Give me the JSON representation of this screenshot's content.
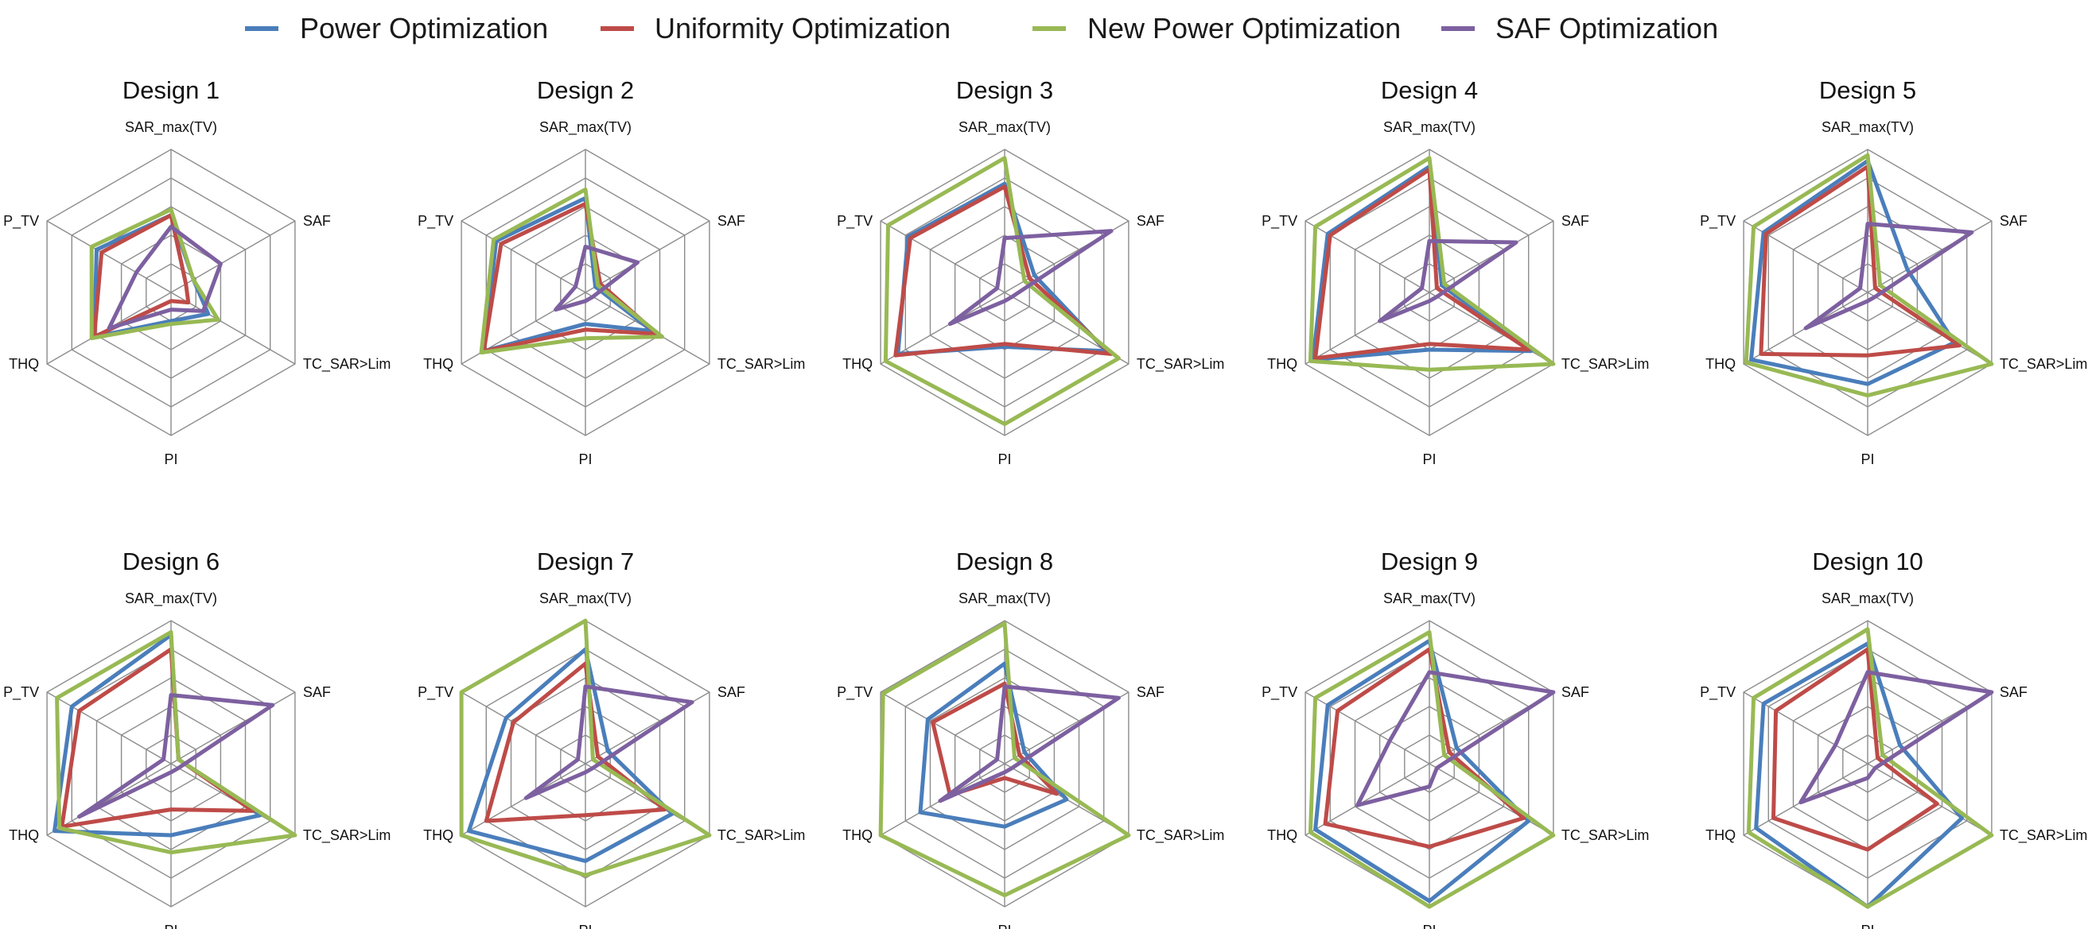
{
  "legend": [
    {
      "name": "Power Optimization",
      "color": "#4a7ebb"
    },
    {
      "name": "Uniformity Optimization",
      "color": "#be4b48"
    },
    {
      "name": "New Power Optimization",
      "color": "#98b954"
    },
    {
      "name": "SAF Optimization",
      "color": "#7d60a0"
    }
  ],
  "chart_data": [
    {
      "type": "radar",
      "title": "Design 1",
      "axes": [
        "SAR_max(TV)",
        "SAF",
        "TC_SAR>Lim",
        "PI",
        "THQ",
        "P_TV"
      ],
      "range": [
        0,
        5
      ],
      "series": [
        {
          "name": "Power Optimization",
          "values": [
            2.7,
            0.9,
            1.5,
            1.0,
            3.1,
            3.0
          ]
        },
        {
          "name": "Uniformity Optimization",
          "values": [
            2.7,
            0.6,
            0.7,
            0.3,
            3.1,
            2.8
          ]
        },
        {
          "name": "New Power Optimization",
          "values": [
            2.9,
            0.9,
            1.9,
            1.1,
            3.2,
            3.2
          ]
        },
        {
          "name": "SAF Optimization",
          "values": [
            2.3,
            2.0,
            1.3,
            0.6,
            2.5,
            1.4
          ]
        }
      ]
    },
    {
      "type": "radar",
      "title": "Design 2",
      "axes": [
        "SAR_max(TV)",
        "SAF",
        "TC_SAR>Lim",
        "PI",
        "THQ",
        "P_TV"
      ],
      "range": [
        0,
        5
      ],
      "series": [
        {
          "name": "Power Optimization",
          "values": [
            3.3,
            0.4,
            2.7,
            1.1,
            4.1,
            3.6
          ]
        },
        {
          "name": "Uniformity Optimization",
          "values": [
            3.1,
            0.6,
            2.9,
            1.3,
            4.1,
            3.4
          ]
        },
        {
          "name": "New Power Optimization",
          "values": [
            3.6,
            0.5,
            3.1,
            1.6,
            4.2,
            3.7
          ]
        },
        {
          "name": "SAF Optimization",
          "values": [
            1.6,
            2.1,
            0.3,
            0.3,
            1.2,
            0.4
          ]
        }
      ]
    },
    {
      "type": "radar",
      "title": "Design 3",
      "axes": [
        "SAR_max(TV)",
        "SAF",
        "TC_SAR>Lim",
        "PI",
        "THQ",
        "P_TV"
      ],
      "range": [
        0,
        5
      ],
      "series": [
        {
          "name": "Power Optimization",
          "values": [
            3.8,
            1.2,
            4.1,
            1.9,
            4.3,
            3.9
          ]
        },
        {
          "name": "Uniformity Optimization",
          "values": [
            3.7,
            1.0,
            4.3,
            1.8,
            4.4,
            3.8
          ]
        },
        {
          "name": "New Power Optimization",
          "values": [
            4.7,
            0.8,
            4.6,
            4.6,
            4.8,
            4.7
          ]
        },
        {
          "name": "SAF Optimization",
          "values": [
            1.9,
            4.3,
            0.3,
            0.3,
            2.2,
            0.3
          ]
        }
      ]
    },
    {
      "type": "radar",
      "title": "Design 4",
      "axes": [
        "SAR_max(TV)",
        "SAF",
        "TC_SAR>Lim",
        "PI",
        "THQ",
        "P_TV"
      ],
      "range": [
        0,
        5
      ],
      "series": [
        {
          "name": "Power Optimization",
          "values": [
            4.4,
            0.5,
            4.1,
            2.0,
            4.7,
            4.1
          ]
        },
        {
          "name": "Uniformity Optimization",
          "values": [
            4.3,
            0.3,
            4.0,
            1.8,
            4.6,
            4.0
          ]
        },
        {
          "name": "New Power Optimization",
          "values": [
            4.7,
            0.6,
            5.0,
            2.7,
            4.8,
            4.6
          ]
        },
        {
          "name": "SAF Optimization",
          "values": [
            1.8,
            3.5,
            0.3,
            0.3,
            2.0,
            0.3
          ]
        }
      ]
    },
    {
      "type": "radar",
      "title": "Design 5",
      "axes": [
        "SAR_max(TV)",
        "SAF",
        "TC_SAR>Lim",
        "PI",
        "THQ",
        "P_TV"
      ],
      "range": [
        0,
        5
      ],
      "series": [
        {
          "name": "Power Optimization",
          "values": [
            4.6,
            1.6,
            3.5,
            3.2,
            4.7,
            4.2
          ]
        },
        {
          "name": "Uniformity Optimization",
          "values": [
            4.4,
            0.3,
            3.7,
            2.2,
            4.3,
            4.1
          ]
        },
        {
          "name": "New Power Optimization",
          "values": [
            4.8,
            0.5,
            5.0,
            3.6,
            4.9,
            4.6
          ]
        },
        {
          "name": "SAF Optimization",
          "values": [
            2.4,
            4.2,
            0.3,
            0.3,
            2.5,
            0.3
          ]
        }
      ]
    },
    {
      "type": "radar",
      "title": "Design 6",
      "axes": [
        "SAR_max(TV)",
        "SAF",
        "TC_SAR>Lim",
        "PI",
        "THQ",
        "P_TV"
      ],
      "range": [
        0,
        5
      ],
      "series": [
        {
          "name": "Power Optimization",
          "values": [
            4.5,
            0.3,
            3.6,
            2.5,
            4.7,
            4.0
          ]
        },
        {
          "name": "Uniformity Optimization",
          "values": [
            4.0,
            0.3,
            3.3,
            1.6,
            4.4,
            3.7
          ]
        },
        {
          "name": "New Power Optimization",
          "values": [
            4.6,
            0.3,
            5.0,
            3.1,
            4.5,
            4.6
          ]
        },
        {
          "name": "SAF Optimization",
          "values": [
            2.4,
            4.1,
            0.3,
            0.3,
            3.7,
            0.3
          ]
        }
      ]
    },
    {
      "type": "radar",
      "title": "Design 7",
      "axes": [
        "SAR_max(TV)",
        "SAF",
        "TC_SAR>Lim",
        "PI",
        "THQ",
        "P_TV"
      ],
      "range": [
        0,
        5
      ],
      "series": [
        {
          "name": "Power Optimization",
          "values": [
            4.0,
            0.9,
            3.5,
            3.4,
            4.7,
            3.2
          ]
        },
        {
          "name": "Uniformity Optimization",
          "values": [
            3.5,
            0.5,
            3.2,
            1.8,
            4.0,
            2.9
          ]
        },
        {
          "name": "New Power Optimization",
          "values": [
            5.0,
            0.3,
            5.0,
            3.9,
            5.0,
            5.0
          ]
        },
        {
          "name": "SAF Optimization",
          "values": [
            2.7,
            4.3,
            0.3,
            0.3,
            2.4,
            0.3
          ]
        }
      ]
    },
    {
      "type": "radar",
      "title": "Design 8",
      "axes": [
        "SAR_max(TV)",
        "SAF",
        "TC_SAR>Lim",
        "PI",
        "THQ",
        "P_TV"
      ],
      "range": [
        0,
        5
      ],
      "series": [
        {
          "name": "Power Optimization",
          "values": [
            3.5,
            0.8,
            2.5,
            2.2,
            3.4,
            3.1
          ]
        },
        {
          "name": "Uniformity Optimization",
          "values": [
            2.8,
            0.6,
            2.1,
            0.5,
            2.2,
            2.9
          ]
        },
        {
          "name": "New Power Optimization",
          "values": [
            4.9,
            0.4,
            5.0,
            4.6,
            5.0,
            4.9
          ]
        },
        {
          "name": "SAF Optimization",
          "values": [
            2.7,
            4.6,
            0.3,
            0.3,
            2.6,
            0.3
          ]
        }
      ]
    },
    {
      "type": "radar",
      "title": "Design 9",
      "axes": [
        "SAR_max(TV)",
        "SAF",
        "TC_SAR>Lim",
        "PI",
        "THQ",
        "P_TV"
      ],
      "range": [
        0,
        5
      ],
      "series": [
        {
          "name": "Power Optimization",
          "values": [
            4.3,
            1.1,
            4.0,
            4.8,
            4.6,
            4.1
          ]
        },
        {
          "name": "Uniformity Optimization",
          "values": [
            4.0,
            0.8,
            3.8,
            2.9,
            4.2,
            3.7
          ]
        },
        {
          "name": "New Power Optimization",
          "values": [
            4.6,
            0.6,
            5.0,
            5.0,
            4.8,
            4.6
          ]
        },
        {
          "name": "SAF Optimization",
          "values": [
            3.2,
            5.0,
            0.3,
            0.8,
            2.9,
            1.6
          ]
        }
      ]
    },
    {
      "type": "radar",
      "title": "Design 10",
      "axes": [
        "SAR_max(TV)",
        "SAF",
        "TC_SAR>Lim",
        "PI",
        "THQ",
        "P_TV"
      ],
      "range": [
        0,
        5
      ],
      "series": [
        {
          "name": "Power Optimization",
          "values": [
            4.2,
            1.3,
            3.8,
            5.0,
            4.5,
            4.2
          ]
        },
        {
          "name": "Uniformity Optimization",
          "values": [
            4.0,
            0.4,
            2.8,
            3.0,
            3.8,
            3.7
          ]
        },
        {
          "name": "New Power Optimization",
          "values": [
            4.7,
            0.6,
            5.0,
            5.0,
            4.8,
            4.6
          ]
        },
        {
          "name": "SAF Optimization",
          "values": [
            3.2,
            5.0,
            0.3,
            0.5,
            2.7,
            1.3
          ]
        }
      ]
    }
  ]
}
